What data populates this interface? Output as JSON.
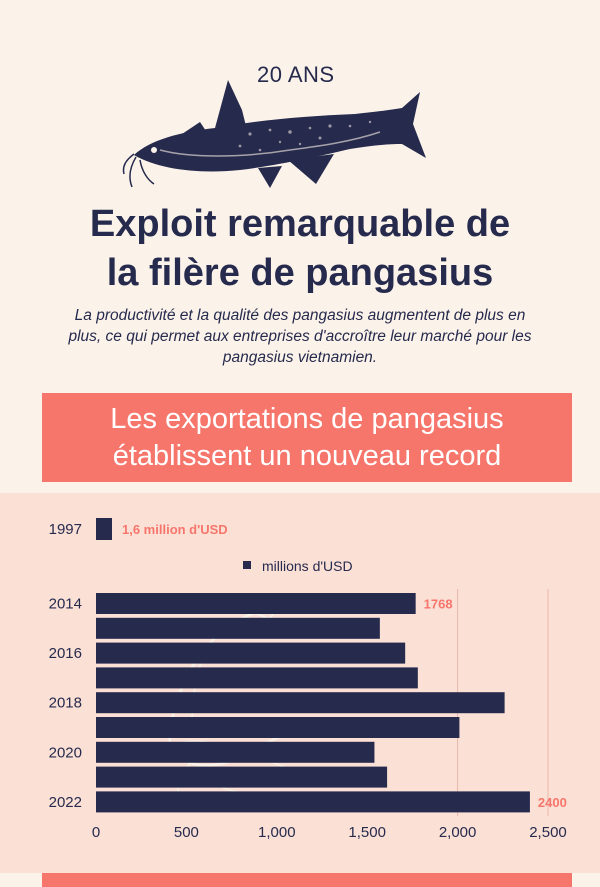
{
  "header": {
    "badge": "20 ANS",
    "title_line1": "Exploit remarquable de",
    "title_line2": "la filère de pangasius",
    "subtitle": "La productivité et la qualité des pangasius augmentent de plus en plus, ce qui permet aux entreprises d'accroître leur marché pour les pangasius vietnamien."
  },
  "banner": {
    "line1": "Les exportations de pangasius",
    "line2": "établissent un nouveau record"
  },
  "colors": {
    "navy": "#262a4d",
    "coral": "#f7766c",
    "panel": "#fbe0d6",
    "background": "#fbf3ea"
  },
  "chart_data": {
    "type": "bar",
    "orientation": "horizontal",
    "baseline": {
      "year": "1997",
      "value": 1.6,
      "label": "1,6 million d'USD"
    },
    "legend": "millions d'USD",
    "categories": [
      "2014",
      "2015",
      "2016",
      "2017",
      "2018",
      "2019",
      "2020",
      "2021",
      "2022"
    ],
    "tick_labels_y": [
      "2014",
      "2016",
      "2018",
      "2020",
      "2022"
    ],
    "values": [
      1768,
      1570,
      1710,
      1780,
      2260,
      2010,
      1540,
      1610,
      2400
    ],
    "data_labels": {
      "2014": "1768",
      "2022": "2400"
    },
    "x_ticks": [
      0,
      500,
      1000,
      1500,
      2000,
      2500
    ],
    "x_tick_labels": [
      "0",
      "500",
      "1,000",
      "1,500",
      "2,000",
      "2,500"
    ],
    "xlim": [
      0,
      2500
    ],
    "grid": "vertical lines at 2000 and 2500"
  }
}
